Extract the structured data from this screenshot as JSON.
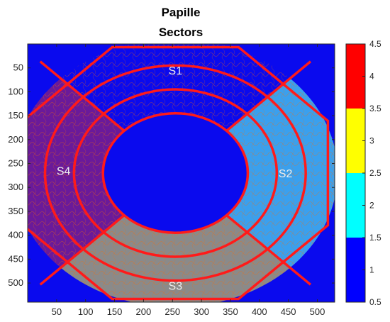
{
  "chart_data": {
    "type": "heatmap",
    "title": [
      "Papille",
      "Sectors"
    ],
    "xlim": [
      0,
      530
    ],
    "ylim": [
      0,
      540
    ],
    "x_ticks": [
      50,
      100,
      150,
      200,
      250,
      300,
      350,
      400,
      450,
      500
    ],
    "y_ticks": [
      50,
      100,
      150,
      200,
      250,
      300,
      350,
      400,
      450,
      500
    ],
    "sectors": [
      {
        "name": "S1",
        "value": 1,
        "position": "top"
      },
      {
        "name": "S2",
        "value": 2,
        "position": "right"
      },
      {
        "name": "S3",
        "value": 3,
        "position": "bottom"
      },
      {
        "name": "S4",
        "value": 4,
        "position": "left"
      }
    ],
    "center_value": 1,
    "colorbar": {
      "range": [
        0.5,
        4.5
      ],
      "ticks": [
        0.5,
        1,
        1.5,
        2,
        2.5,
        3,
        3.5,
        4,
        4.5
      ],
      "tick_labels": [
        "0.5",
        "1",
        "1.5",
        "2",
        "2.5",
        "3",
        "3.5",
        "4",
        "4.5"
      ],
      "bands": [
        {
          "from": 0.5,
          "to": 1.5,
          "color": "#0000ff"
        },
        {
          "from": 1.5,
          "to": 2.5,
          "color": "#00ffff"
        },
        {
          "from": 2.5,
          "to": 3.5,
          "color": "#ffff00"
        },
        {
          "from": 3.5,
          "to": 4.5,
          "color": "#ff0000"
        }
      ]
    },
    "sector_display_colors": {
      "S1": "#0a0aee",
      "S2": "#3aa0ee",
      "S3": "#8a8a8a",
      "S4": "#6a1a9a",
      "center": "#0a0aee",
      "boundary": "#ff1a1a"
    }
  }
}
